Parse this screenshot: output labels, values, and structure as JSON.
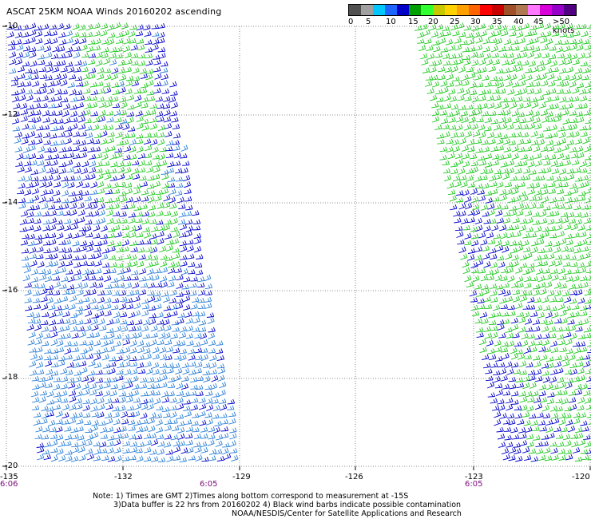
{
  "title": "ASCAT 25KM NOAA Winds 20160202 ascending",
  "legend": {
    "labels": [
      "0",
      "5",
      "10",
      "15",
      "20",
      "25",
      "30",
      "35",
      "40",
      "45",
      ">50 knots"
    ],
    "colors": [
      "#505050",
      "#a0a0a0",
      "#00c8ff",
      "#1e64ff",
      "#0000c8",
      "#00a000",
      "#30ff30",
      "#c8c800",
      "#ffd200",
      "#ffa000",
      "#ff6400",
      "#ff0000",
      "#c80000",
      "#a05028",
      "#b07850",
      "#ff78ff",
      "#d800d8",
      "#9600c8",
      "#500080"
    ]
  },
  "lat_labels": [
    "-10",
    "-12",
    "-14",
    "-16",
    "-18",
    "-20"
  ],
  "lon_labels": [
    "-135",
    "-132",
    "-129",
    "-126",
    "-123",
    "-120"
  ],
  "time_labels": [
    "6:06",
    "6:05",
    "6:05"
  ],
  "notes": [
    "Note: 1) Times are GMT 2)Times along bottom correspond to measurement at -15S",
    "3)Data buffer is 22 hrs from 20160202 4) Black wind barbs indicate possible contamination",
    "NOAA/NESDIS/Center for Satellite Applications and Research"
  ],
  "colors": {
    "light_blue": "#2a7fd6",
    "dark_blue": "#0000c8",
    "green": "#1fc81f",
    "grid": "#666666",
    "time": "#7a0a7a"
  }
}
